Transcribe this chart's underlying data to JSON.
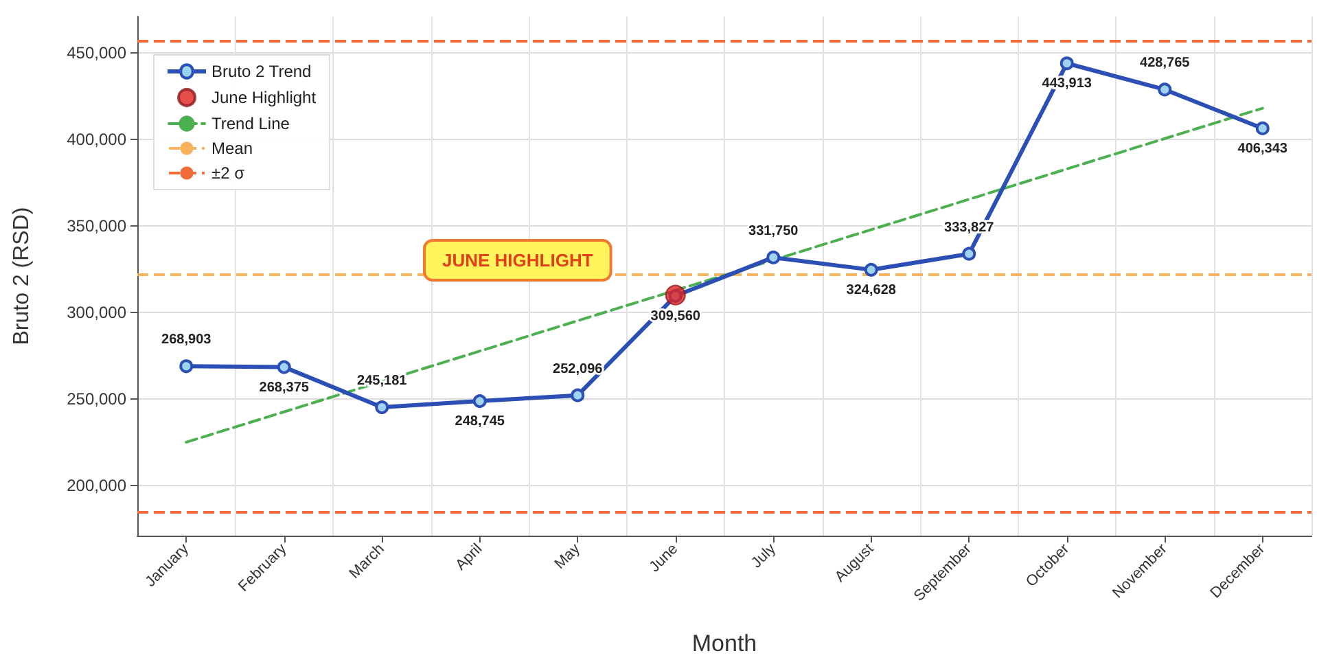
{
  "chart_data": {
    "type": "line",
    "xlabel": "Month",
    "ylabel": "Bruto 2 (RSD)",
    "categories": [
      "January",
      "February",
      "March",
      "April",
      "May",
      "June",
      "July",
      "August",
      "September",
      "October",
      "November",
      "December"
    ],
    "series": [
      {
        "name": "Bruto 2 Trend",
        "color": "#2c4fb5",
        "values": [
          268903,
          268375,
          245181,
          248745,
          252096,
          309560,
          331750,
          324628,
          333827,
          443913,
          428765,
          406343
        ],
        "value_labels": [
          "268,903",
          "268,375",
          "245,181",
          "248,745",
          "252,096",
          "309,560",
          "331,750",
          "324,628",
          "333,827",
          "443,913",
          "428,765",
          "406,343"
        ],
        "marker": "circle"
      },
      {
        "name": "June Highlight",
        "type": "scatter",
        "color": "#e02020",
        "x": [
          "June"
        ],
        "values": [
          310000
        ],
        "marker": "circle"
      },
      {
        "name": "Trend Line",
        "color": "#4caf50",
        "x": [
          "January",
          "December"
        ],
        "values": [
          225000,
          418000
        ],
        "line_style": "dashed",
        "marker": "none"
      }
    ],
    "ref_lines": [
      {
        "axis": "y",
        "value": 322000,
        "label": "Mean",
        "color": "#f7b35b",
        "line_style": "dashed"
      },
      {
        "axis": "y",
        "value": 457000,
        "label": "±2 σ",
        "color": "#f26b3a",
        "line_style": "dashed"
      },
      {
        "axis": "y",
        "value": 185000,
        "label": null,
        "color": "#f26b3a",
        "line_style": "dashed"
      }
    ],
    "annotations": [
      "JUNE HIGHLIGHT"
    ],
    "ylim": [
      171000,
      471000
    ],
    "yticks": [
      {
        "value": 200000,
        "label": "200,000"
      },
      {
        "value": 250000,
        "label": "250,000"
      },
      {
        "value": 300000,
        "label": "300,000"
      },
      {
        "value": 350000,
        "label": "350,000"
      },
      {
        "value": 400000,
        "label": "400,000"
      },
      {
        "value": 450000,
        "label": "450,000"
      }
    ],
    "grid": true,
    "legend": "top left"
  }
}
